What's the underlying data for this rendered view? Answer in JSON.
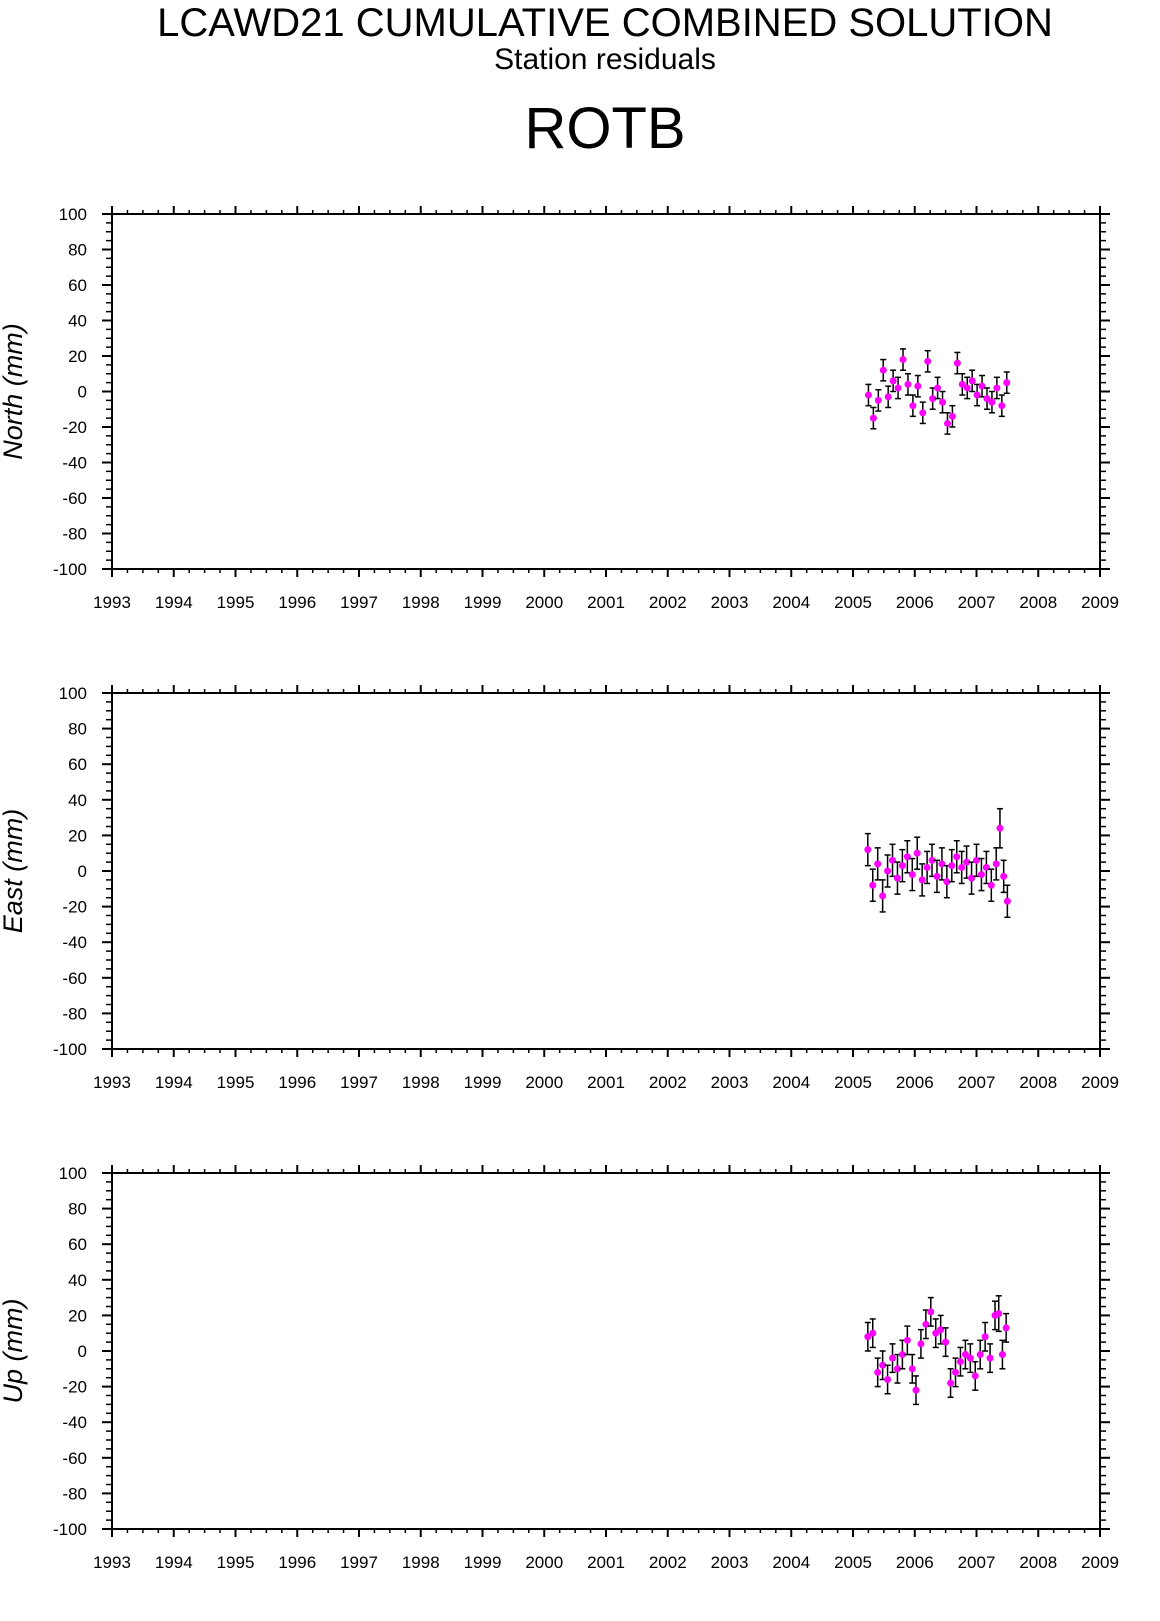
{
  "header": {
    "title": "LCAWD21 CUMULATIVE COMBINED SOLUTION",
    "subtitle": "Station residuals",
    "station": "ROTB"
  },
  "colors": {
    "point": "#ff00ff",
    "errorbar": "#000000",
    "axis": "#000000"
  },
  "chart_data": [
    {
      "type": "scatter",
      "ylabel": "North (mm)",
      "xlim": [
        1993,
        2009
      ],
      "ylim": [
        -100,
        100
      ],
      "x_ticks": [
        "1993",
        "1994",
        "1995",
        "1996",
        "1997",
        "1998",
        "1999",
        "2000",
        "2001",
        "2002",
        "2003",
        "2004",
        "2005",
        "2006",
        "2007",
        "2008",
        "2009"
      ],
      "y_ticks": [
        "100",
        "80",
        "60",
        "40",
        "20",
        "0",
        "-20",
        "-40",
        "-60",
        "-80",
        "-100"
      ],
      "grid": false,
      "series": [
        {
          "x": [
            2005.25,
            2005.33,
            2005.41,
            2005.49,
            2005.57,
            2005.65,
            2005.73,
            2005.81,
            2005.89,
            2005.97,
            2006.05,
            2006.13,
            2006.21,
            2006.29,
            2006.37,
            2006.45,
            2006.53,
            2006.61,
            2006.69,
            2006.77,
            2006.85,
            2006.93,
            2007.01,
            2007.09,
            2007.17,
            2007.25,
            2007.33,
            2007.41,
            2007.49
          ],
          "y": [
            -2,
            -15,
            -5,
            12,
            -3,
            6,
            2,
            18,
            4,
            -8,
            3,
            -12,
            17,
            -4,
            2,
            -6,
            -18,
            -14,
            16,
            4,
            2,
            6,
            -2,
            3,
            -4,
            -6,
            2,
            -8,
            5
          ],
          "err": [
            6,
            6,
            6,
            6,
            6,
            6,
            6,
            6,
            6,
            6,
            6,
            6,
            6,
            6,
            6,
            6,
            6,
            6,
            6,
            6,
            6,
            6,
            6,
            6,
            6,
            6,
            6,
            6,
            6
          ]
        }
      ]
    },
    {
      "type": "scatter",
      "ylabel": "East (mm)",
      "xlim": [
        1993,
        2009
      ],
      "ylim": [
        -100,
        100
      ],
      "x_ticks": [
        "1993",
        "1994",
        "1995",
        "1996",
        "1997",
        "1998",
        "1999",
        "2000",
        "2001",
        "2002",
        "2003",
        "2004",
        "2005",
        "2006",
        "2007",
        "2008",
        "2009"
      ],
      "y_ticks": [
        "100",
        "80",
        "60",
        "40",
        "20",
        "0",
        "-20",
        "-40",
        "-60",
        "-80",
        "-100"
      ],
      "grid": false,
      "series": [
        {
          "x": [
            2005.24,
            2005.32,
            2005.4,
            2005.48,
            2005.56,
            2005.64,
            2005.72,
            2005.8,
            2005.88,
            2005.96,
            2006.04,
            2006.12,
            2006.2,
            2006.28,
            2006.36,
            2006.44,
            2006.52,
            2006.6,
            2006.68,
            2006.76,
            2006.84,
            2006.92,
            2007.0,
            2007.08,
            2007.16,
            2007.24,
            2007.32,
            2007.38,
            2007.44,
            2007.5
          ],
          "y": [
            12,
            -8,
            4,
            -14,
            0,
            6,
            -4,
            3,
            8,
            -2,
            10,
            -5,
            2,
            6,
            -3,
            4,
            -6,
            3,
            8,
            2,
            5,
            -4,
            6,
            -2,
            2,
            -8,
            4,
            24,
            -3,
            -17
          ],
          "err": [
            9,
            9,
            9,
            9,
            9,
            9,
            9,
            9,
            9,
            9,
            9,
            9,
            9,
            9,
            9,
            9,
            9,
            9,
            9,
            9,
            9,
            9,
            9,
            9,
            9,
            9,
            9,
            11,
            9,
            9
          ]
        }
      ]
    },
    {
      "type": "scatter",
      "ylabel": "Up (mm)",
      "xlim": [
        1993,
        2009
      ],
      "ylim": [
        -100,
        100
      ],
      "x_ticks": [
        "1993",
        "1994",
        "1995",
        "1996",
        "1997",
        "1998",
        "1999",
        "2000",
        "2001",
        "2002",
        "2003",
        "2004",
        "2005",
        "2006",
        "2007",
        "2008",
        "2009"
      ],
      "y_ticks": [
        "100",
        "80",
        "60",
        "40",
        "20",
        "0",
        "-20",
        "-40",
        "-60",
        "-80",
        "-100"
      ],
      "grid": false,
      "series": [
        {
          "x": [
            2005.24,
            2005.32,
            2005.4,
            2005.48,
            2005.56,
            2005.64,
            2005.72,
            2005.8,
            2005.88,
            2005.96,
            2006.02,
            2006.1,
            2006.18,
            2006.26,
            2006.34,
            2006.42,
            2006.5,
            2006.58,
            2006.66,
            2006.74,
            2006.82,
            2006.9,
            2006.98,
            2007.06,
            2007.14,
            2007.22,
            2007.3,
            2007.36,
            2007.42,
            2007.48
          ],
          "y": [
            8,
            10,
            -12,
            -8,
            -16,
            -4,
            -10,
            -2,
            6,
            -10,
            -22,
            4,
            15,
            22,
            10,
            12,
            5,
            -18,
            -12,
            -6,
            -2,
            -4,
            -14,
            -2,
            8,
            -4,
            20,
            21,
            -2,
            13
          ],
          "err": [
            8,
            8,
            8,
            8,
            8,
            8,
            8,
            8,
            8,
            8,
            8,
            8,
            8,
            8,
            8,
            8,
            8,
            8,
            8,
            8,
            8,
            8,
            8,
            8,
            8,
            8,
            8,
            10,
            8,
            8
          ]
        }
      ]
    }
  ]
}
